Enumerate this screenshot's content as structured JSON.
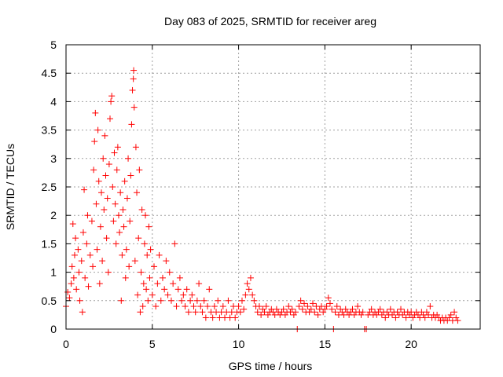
{
  "chart_data": {
    "type": "scatter",
    "title": "Day 083 of 2025, SRMTID for receiver areg",
    "xlabel": "GPS time / hours",
    "ylabel": "SRMTID / TECUs",
    "xlim": [
      0,
      24
    ],
    "ylim": [
      0,
      5
    ],
    "x_ticks": [
      0,
      5,
      10,
      15,
      20
    ],
    "x_tick_labels": [
      "0",
      "5",
      "10",
      "15",
      "20"
    ],
    "y_ticks": [
      0,
      0.5,
      1,
      1.5,
      2,
      2.5,
      3,
      3.5,
      4,
      4.5,
      5
    ],
    "y_tick_labels": [
      "0",
      "0.5",
      "1",
      "1.5",
      "2",
      "2.5",
      "3",
      "3.5",
      "4",
      "4.5",
      "5"
    ],
    "grid": true,
    "marker": "plus",
    "color": "#ff0000",
    "series": [
      {
        "name": "SRMTID",
        "points": [
          [
            0.0,
            0.4
          ],
          [
            0.1,
            0.65
          ],
          [
            0.2,
            0.55
          ],
          [
            0.3,
            0.8
          ],
          [
            0.35,
            1.1
          ],
          [
            0.4,
            1.85
          ],
          [
            0.45,
            0.9
          ],
          [
            0.5,
            1.3
          ],
          [
            0.55,
            1.6
          ],
          [
            0.6,
            0.7
          ],
          [
            0.7,
            1.4
          ],
          [
            0.75,
            1.0
          ],
          [
            0.8,
            0.5
          ],
          [
            0.9,
            1.2
          ],
          [
            0.95,
            0.3
          ],
          [
            1.0,
            1.7
          ],
          [
            1.05,
            2.45
          ],
          [
            1.1,
            0.9
          ],
          [
            1.2,
            1.5
          ],
          [
            1.25,
            2.0
          ],
          [
            1.3,
            0.75
          ],
          [
            1.4,
            1.3
          ],
          [
            1.5,
            1.9
          ],
          [
            1.55,
            1.1
          ],
          [
            1.6,
            2.8
          ],
          [
            1.65,
            3.3
          ],
          [
            1.7,
            3.8
          ],
          [
            1.75,
            2.2
          ],
          [
            1.8,
            1.4
          ],
          [
            1.85,
            3.5
          ],
          [
            1.9,
            2.6
          ],
          [
            1.95,
            0.8
          ],
          [
            2.0,
            1.8
          ],
          [
            2.05,
            2.4
          ],
          [
            2.1,
            1.2
          ],
          [
            2.15,
            3.0
          ],
          [
            2.2,
            2.1
          ],
          [
            2.25,
            3.4
          ],
          [
            2.3,
            2.7
          ],
          [
            2.35,
            1.6
          ],
          [
            2.4,
            2.3
          ],
          [
            2.45,
            1.0
          ],
          [
            2.5,
            2.9
          ],
          [
            2.55,
            3.7
          ],
          [
            2.6,
            4.0
          ],
          [
            2.65,
            4.1
          ],
          [
            2.7,
            2.5
          ],
          [
            2.75,
            1.9
          ],
          [
            2.8,
            3.1
          ],
          [
            2.85,
            2.2
          ],
          [
            2.9,
            1.5
          ],
          [
            2.95,
            2.8
          ],
          [
            3.0,
            3.2
          ],
          [
            3.05,
            2.0
          ],
          [
            3.1,
            1.7
          ],
          [
            3.15,
            2.4
          ],
          [
            3.2,
            0.5
          ],
          [
            3.25,
            1.3
          ],
          [
            3.3,
            2.1
          ],
          [
            3.35,
            1.8
          ],
          [
            3.4,
            2.6
          ],
          [
            3.45,
            0.9
          ],
          [
            3.5,
            1.4
          ],
          [
            3.55,
            2.3
          ],
          [
            3.6,
            3.0
          ],
          [
            3.65,
            1.1
          ],
          [
            3.7,
            1.9
          ],
          [
            3.75,
            2.7
          ],
          [
            3.8,
            3.6
          ],
          [
            3.85,
            4.2
          ],
          [
            3.9,
            4.4
          ],
          [
            3.92,
            4.55
          ],
          [
            3.95,
            3.9
          ],
          [
            4.0,
            1.2
          ],
          [
            4.05,
            3.2
          ],
          [
            4.1,
            2.4
          ],
          [
            4.15,
            0.6
          ],
          [
            4.2,
            1.6
          ],
          [
            4.25,
            2.8
          ],
          [
            4.3,
            0.3
          ],
          [
            4.35,
            1.0
          ],
          [
            4.4,
            2.1
          ],
          [
            4.45,
            0.4
          ],
          [
            4.5,
            0.8
          ],
          [
            4.55,
            1.5
          ],
          [
            4.6,
            2.0
          ],
          [
            4.65,
            0.7
          ],
          [
            4.7,
            1.3
          ],
          [
            4.75,
            0.5
          ],
          [
            4.8,
            1.8
          ],
          [
            4.85,
            0.9
          ],
          [
            4.9,
            1.4
          ],
          [
            5.0,
            0.6
          ],
          [
            5.1,
            1.1
          ],
          [
            5.2,
            0.4
          ],
          [
            5.3,
            0.8
          ],
          [
            5.4,
            1.3
          ],
          [
            5.5,
            0.5
          ],
          [
            5.6,
            0.9
          ],
          [
            5.7,
            0.7
          ],
          [
            5.8,
            1.2
          ],
          [
            5.9,
            0.6
          ],
          [
            6.0,
            1.0
          ],
          [
            6.1,
            0.5
          ],
          [
            6.2,
            0.8
          ],
          [
            6.3,
            1.5
          ],
          [
            6.4,
            0.4
          ],
          [
            6.5,
            0.7
          ],
          [
            6.6,
            0.9
          ],
          [
            6.7,
            0.5
          ],
          [
            6.8,
            0.6
          ],
          [
            6.9,
            0.4
          ],
          [
            7.0,
            0.7
          ],
          [
            7.1,
            0.3
          ],
          [
            7.2,
            0.5
          ],
          [
            7.3,
            0.6
          ],
          [
            7.4,
            0.4
          ],
          [
            7.5,
            0.3
          ],
          [
            7.6,
            0.5
          ],
          [
            7.7,
            0.8
          ],
          [
            7.8,
            0.4
          ],
          [
            7.9,
            0.3
          ],
          [
            8.0,
            0.5
          ],
          [
            8.1,
            0.2
          ],
          [
            8.2,
            0.4
          ],
          [
            8.3,
            0.7
          ],
          [
            8.4,
            0.3
          ],
          [
            8.5,
            0.2
          ],
          [
            8.6,
            0.4
          ],
          [
            8.7,
            0.3
          ],
          [
            8.8,
            0.5
          ],
          [
            8.9,
            0.2
          ],
          [
            9.0,
            0.3
          ],
          [
            9.1,
            0.4
          ],
          [
            9.2,
            0.2
          ],
          [
            9.3,
            0.3
          ],
          [
            9.4,
            0.5
          ],
          [
            9.5,
            0.2
          ],
          [
            9.6,
            0.3
          ],
          [
            9.7,
            0.4
          ],
          [
            9.8,
            0.2
          ],
          [
            9.9,
            0.3
          ],
          [
            10.0,
            0.4
          ],
          [
            10.1,
            0.3
          ],
          [
            10.2,
            0.5
          ],
          [
            10.3,
            0.35
          ],
          [
            10.4,
            0.6
          ],
          [
            10.5,
            0.8
          ],
          [
            10.6,
            0.7
          ],
          [
            10.7,
            0.9
          ],
          [
            10.8,
            0.6
          ],
          [
            10.9,
            0.5
          ],
          [
            11.0,
            0.4
          ],
          [
            11.1,
            0.3
          ],
          [
            11.2,
            0.4
          ],
          [
            11.3,
            0.25
          ],
          [
            11.4,
            0.35
          ],
          [
            11.5,
            0.3
          ],
          [
            11.6,
            0.4
          ],
          [
            11.7,
            0.25
          ],
          [
            11.8,
            0.3
          ],
          [
            11.9,
            0.35
          ],
          [
            12.0,
            0.3
          ],
          [
            12.1,
            0.25
          ],
          [
            12.2,
            0.35
          ],
          [
            12.3,
            0.3
          ],
          [
            12.4,
            0.25
          ],
          [
            12.5,
            0.3
          ],
          [
            12.6,
            0.35
          ],
          [
            12.7,
            0.25
          ],
          [
            12.8,
            0.3
          ],
          [
            12.9,
            0.4
          ],
          [
            13.0,
            0.3
          ],
          [
            13.1,
            0.35
          ],
          [
            13.2,
            0.25
          ],
          [
            13.3,
            0.3
          ],
          [
            13.4,
            0.0
          ],
          [
            13.5,
            0.4
          ],
          [
            13.6,
            0.5
          ],
          [
            13.7,
            0.35
          ],
          [
            13.8,
            0.45
          ],
          [
            13.9,
            0.3
          ],
          [
            14.0,
            0.4
          ],
          [
            14.1,
            0.3
          ],
          [
            14.2,
            0.35
          ],
          [
            14.3,
            0.45
          ],
          [
            14.4,
            0.3
          ],
          [
            14.5,
            0.4
          ],
          [
            14.6,
            0.25
          ],
          [
            14.7,
            0.35
          ],
          [
            14.8,
            0.4
          ],
          [
            14.9,
            0.3
          ],
          [
            15.0,
            0.35
          ],
          [
            15.1,
            0.4
          ],
          [
            15.2,
            0.55
          ],
          [
            15.3,
            0.45
          ],
          [
            15.4,
            0.35
          ],
          [
            15.5,
            0.0
          ],
          [
            15.6,
            0.3
          ],
          [
            15.7,
            0.4
          ],
          [
            15.8,
            0.25
          ],
          [
            15.9,
            0.35
          ],
          [
            16.0,
            0.3
          ],
          [
            16.1,
            0.25
          ],
          [
            16.2,
            0.35
          ],
          [
            16.3,
            0.3
          ],
          [
            16.4,
            0.25
          ],
          [
            16.5,
            0.3
          ],
          [
            16.6,
            0.35
          ],
          [
            16.7,
            0.25
          ],
          [
            16.8,
            0.3
          ],
          [
            16.9,
            0.4
          ],
          [
            17.0,
            0.3
          ],
          [
            17.1,
            0.25
          ],
          [
            17.2,
            0.3
          ],
          [
            17.3,
            0.0
          ],
          [
            17.4,
            0.0
          ],
          [
            17.5,
            0.25
          ],
          [
            17.6,
            0.3
          ],
          [
            17.7,
            0.35
          ],
          [
            17.8,
            0.25
          ],
          [
            17.9,
            0.3
          ],
          [
            18.0,
            0.25
          ],
          [
            18.1,
            0.3
          ],
          [
            18.2,
            0.35
          ],
          [
            18.3,
            0.25
          ],
          [
            18.4,
            0.3
          ],
          [
            18.5,
            0.2
          ],
          [
            18.6,
            0.3
          ],
          [
            18.7,
            0.25
          ],
          [
            18.8,
            0.35
          ],
          [
            18.9,
            0.25
          ],
          [
            19.0,
            0.3
          ],
          [
            19.1,
            0.2
          ],
          [
            19.2,
            0.3
          ],
          [
            19.3,
            0.25
          ],
          [
            19.4,
            0.35
          ],
          [
            19.5,
            0.25
          ],
          [
            19.6,
            0.3
          ],
          [
            19.7,
            0.2
          ],
          [
            19.8,
            0.3
          ],
          [
            19.9,
            0.25
          ],
          [
            20.0,
            0.3
          ],
          [
            20.1,
            0.2
          ],
          [
            20.2,
            0.25
          ],
          [
            20.3,
            0.3
          ],
          [
            20.4,
            0.25
          ],
          [
            20.5,
            0.2
          ],
          [
            20.6,
            0.3
          ],
          [
            20.7,
            0.25
          ],
          [
            20.8,
            0.2
          ],
          [
            20.9,
            0.3
          ],
          [
            21.0,
            0.25
          ],
          [
            21.1,
            0.4
          ],
          [
            21.2,
            0.2
          ],
          [
            21.3,
            0.25
          ],
          [
            21.4,
            0.2
          ],
          [
            21.5,
            0.25
          ],
          [
            21.6,
            0.2
          ],
          [
            21.7,
            0.15
          ],
          [
            21.8,
            0.2
          ],
          [
            21.9,
            0.15
          ],
          [
            22.0,
            0.2
          ],
          [
            22.1,
            0.15
          ],
          [
            22.2,
            0.2
          ],
          [
            22.3,
            0.25
          ],
          [
            22.4,
            0.15
          ],
          [
            22.5,
            0.3
          ],
          [
            22.6,
            0.2
          ],
          [
            22.7,
            0.15
          ]
        ]
      }
    ]
  }
}
